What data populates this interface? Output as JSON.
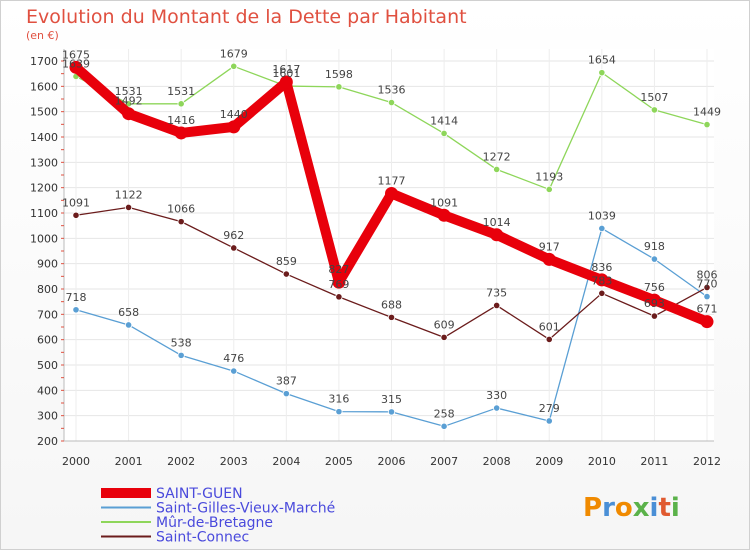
{
  "chart_data": {
    "type": "line",
    "title": "Evolution du Montant de la Dette par Habitant",
    "subtitle": "(en €)",
    "xlabel": "",
    "ylabel": "",
    "ylim": [
      200,
      1700
    ],
    "yticks": [
      200,
      300,
      400,
      500,
      600,
      700,
      800,
      900,
      1000,
      1100,
      1200,
      1300,
      1400,
      1500,
      1600,
      1700
    ],
    "categories": [
      "2000",
      "2001",
      "2002",
      "2003",
      "2004",
      "2005",
      "2006",
      "2007",
      "2008",
      "2009",
      "2010",
      "2011",
      "2012"
    ],
    "grid": true,
    "legend_position": "bottom-left",
    "series": [
      {
        "name": "SAINT-GUEN",
        "color": "#e8000b",
        "values": [
          1675,
          1492,
          1416,
          1440,
          1617,
          827,
          1177,
          1091,
          1014,
          917,
          836,
          756,
          671
        ]
      },
      {
        "name": "Saint-Gilles-Vieux-Marché",
        "color": "#5a9fd4",
        "values": [
          718,
          658,
          538,
          476,
          387,
          316,
          315,
          258,
          330,
          279,
          1039,
          918,
          770
        ]
      },
      {
        "name": "Mûr-de-Bretagne",
        "color": "#8ed65a",
        "values": [
          1639,
          1531,
          1531,
          1679,
          1601,
          1598,
          1536,
          1414,
          1272,
          1193,
          1654,
          1507,
          1449
        ]
      },
      {
        "name": "Saint-Connec",
        "color": "#6b1c1c",
        "values": [
          1091,
          1122,
          1066,
          962,
          859,
          769,
          688,
          609,
          735,
          601,
          783,
          693,
          806
        ]
      }
    ]
  },
  "logo": {
    "text": "Proxiti"
  }
}
